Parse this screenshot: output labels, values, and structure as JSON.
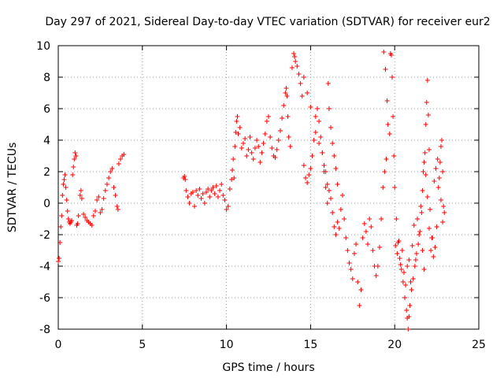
{
  "chart_data": {
    "type": "scatter",
    "title": "Day 297 of 2021, Sidereal Day-to-day VTEC variation (SDTVAR) for receiver eur2",
    "xlabel": "GPS time / hours",
    "ylabel": "SDTVAR / TECUs",
    "xlim": [
      0,
      25
    ],
    "ylim": [
      -8,
      10
    ],
    "xticks": [
      0,
      5,
      10,
      15,
      20,
      25
    ],
    "yticks": [
      -8,
      -6,
      -4,
      -2,
      0,
      2,
      4,
      6,
      8,
      10
    ],
    "xtick_labels": [
      "0",
      "5",
      "10",
      "15",
      "20",
      "25"
    ],
    "ytick_labels": [
      "-8",
      "-6",
      "-4",
      "-2",
      "0",
      "2",
      "4",
      "6",
      "8",
      "10"
    ],
    "grid": true,
    "marker": "+",
    "color": "#ff0000",
    "series": [
      {
        "name": "eur2 SDTVAR",
        "points": [
          [
            0.0,
            -3.7
          ],
          [
            0.05,
            -3.5
          ],
          [
            0.1,
            -2.5
          ],
          [
            0.15,
            -1.5
          ],
          [
            0.2,
            -0.8
          ],
          [
            0.25,
            0.5
          ],
          [
            0.3,
            1.2
          ],
          [
            0.35,
            1.5
          ],
          [
            0.4,
            1.8
          ],
          [
            0.45,
            1.0
          ],
          [
            0.5,
            0.2
          ],
          [
            0.55,
            -0.5
          ],
          [
            0.6,
            -1.0
          ],
          [
            0.65,
            -1.2
          ],
          [
            0.7,
            -1.3
          ],
          [
            0.75,
            -1.2
          ],
          [
            0.8,
            -1.1
          ],
          [
            0.85,
            1.8
          ],
          [
            0.9,
            2.3
          ],
          [
            0.95,
            2.8
          ],
          [
            1.0,
            3.2
          ],
          [
            1.05,
            3.0
          ],
          [
            1.1,
            -1.4
          ],
          [
            1.15,
            -1.3
          ],
          [
            1.2,
            -0.8
          ],
          [
            1.3,
            0.5
          ],
          [
            1.35,
            0.8
          ],
          [
            1.4,
            0.3
          ],
          [
            1.5,
            -0.7
          ],
          [
            1.6,
            -0.9
          ],
          [
            1.7,
            -1.1
          ],
          [
            1.8,
            -1.2
          ],
          [
            1.9,
            -1.3
          ],
          [
            2.0,
            -1.4
          ],
          [
            2.1,
            -0.8
          ],
          [
            2.2,
            -0.5
          ],
          [
            2.3,
            0.2
          ],
          [
            2.4,
            0.4
          ],
          [
            2.5,
            -0.6
          ],
          [
            2.6,
            -0.4
          ],
          [
            2.7,
            0.3
          ],
          [
            2.8,
            0.8
          ],
          [
            2.9,
            1.2
          ],
          [
            3.0,
            1.6
          ],
          [
            3.1,
            2.0
          ],
          [
            3.2,
            2.2
          ],
          [
            3.3,
            1.0
          ],
          [
            3.4,
            0.5
          ],
          [
            3.5,
            -0.2
          ],
          [
            3.55,
            -0.4
          ],
          [
            3.6,
            2.5
          ],
          [
            3.7,
            2.8
          ],
          [
            3.8,
            3.0
          ],
          [
            3.9,
            3.1
          ],
          [
            7.45,
            1.6
          ],
          [
            7.5,
            1.7
          ],
          [
            7.55,
            1.5
          ],
          [
            7.6,
            0.8
          ],
          [
            7.7,
            0.4
          ],
          [
            7.8,
            0.0
          ],
          [
            7.9,
            0.6
          ],
          [
            8.0,
            0.7
          ],
          [
            8.1,
            -0.2
          ],
          [
            8.2,
            0.8
          ],
          [
            8.3,
            0.5
          ],
          [
            8.4,
            0.9
          ],
          [
            8.5,
            0.3
          ],
          [
            8.6,
            0.6
          ],
          [
            8.7,
            0.0
          ],
          [
            8.8,
            0.7
          ],
          [
            8.9,
            0.9
          ],
          [
            9.0,
            0.4
          ],
          [
            9.1,
            0.8
          ],
          [
            9.2,
            1.0
          ],
          [
            9.3,
            0.6
          ],
          [
            9.4,
            1.1
          ],
          [
            9.5,
            0.4
          ],
          [
            9.6,
            0.8
          ],
          [
            9.7,
            1.2
          ],
          [
            9.8,
            0.5
          ],
          [
            9.9,
            0.2
          ],
          [
            10.0,
            -0.4
          ],
          [
            10.1,
            -0.2
          ],
          [
            10.2,
            0.9
          ],
          [
            10.3,
            1.5
          ],
          [
            10.35,
            2.1
          ],
          [
            10.4,
            2.8
          ],
          [
            10.45,
            1.6
          ],
          [
            10.5,
            3.6
          ],
          [
            10.55,
            4.5
          ],
          [
            10.6,
            5.2
          ],
          [
            10.65,
            5.5
          ],
          [
            10.7,
            4.4
          ],
          [
            10.8,
            4.8
          ],
          [
            10.9,
            3.5
          ],
          [
            11.0,
            3.8
          ],
          [
            11.1,
            4.1
          ],
          [
            11.2,
            3.0
          ],
          [
            11.3,
            3.4
          ],
          [
            11.4,
            4.2
          ],
          [
            11.5,
            3.2
          ],
          [
            11.6,
            2.8
          ],
          [
            11.7,
            3.5
          ],
          [
            11.8,
            4.0
          ],
          [
            11.9,
            3.6
          ],
          [
            12.0,
            2.6
          ],
          [
            12.1,
            3.2
          ],
          [
            12.2,
            3.8
          ],
          [
            12.3,
            4.4
          ],
          [
            12.4,
            5.2
          ],
          [
            12.5,
            5.5
          ],
          [
            12.6,
            4.2
          ],
          [
            12.7,
            3.5
          ],
          [
            12.8,
            3.0
          ],
          [
            12.9,
            2.9
          ],
          [
            13.0,
            3.4
          ],
          [
            13.1,
            4.0
          ],
          [
            13.2,
            4.6
          ],
          [
            13.3,
            5.4
          ],
          [
            13.4,
            6.2
          ],
          [
            13.5,
            7.0
          ],
          [
            13.55,
            7.3
          ],
          [
            13.6,
            6.8
          ],
          [
            13.65,
            5.5
          ],
          [
            13.7,
            4.2
          ],
          [
            13.8,
            3.6
          ],
          [
            13.9,
            8.6
          ],
          [
            14.0,
            9.5
          ],
          [
            14.05,
            9.3
          ],
          [
            14.1,
            9.0
          ],
          [
            14.2,
            8.7
          ],
          [
            14.3,
            8.2
          ],
          [
            14.4,
            7.6
          ],
          [
            14.5,
            6.8
          ],
          [
            14.6,
            2.4
          ],
          [
            14.7,
            1.6
          ],
          [
            14.8,
            1.3
          ],
          [
            14.9,
            1.8
          ],
          [
            15.0,
            2.2
          ],
          [
            15.1,
            3.0
          ],
          [
            15.2,
            4.0
          ],
          [
            15.3,
            5.5
          ],
          [
            15.4,
            6.0
          ],
          [
            15.5,
            5.2
          ],
          [
            15.6,
            4.2
          ],
          [
            15.7,
            3.2
          ],
          [
            15.8,
            2.0
          ],
          [
            15.9,
            1.0
          ],
          [
            16.0,
            0.0
          ],
          [
            16.05,
            7.6
          ],
          [
            16.1,
            6.0
          ],
          [
            16.2,
            4.8
          ],
          [
            16.3,
            3.8
          ],
          [
            16.4,
            3.0
          ],
          [
            16.5,
            2.2
          ],
          [
            16.6,
            1.2
          ],
          [
            16.7,
            -1.6
          ],
          [
            14.6,
            8.0
          ],
          [
            14.8,
            7.0
          ],
          [
            15.0,
            6.1
          ],
          [
            15.3,
            4.5
          ],
          [
            15.5,
            3.8
          ],
          [
            15.7,
            3.2
          ],
          [
            15.8,
            2.4
          ],
          [
            15.9,
            2.0
          ],
          [
            16.0,
            1.2
          ],
          [
            16.1,
            0.8
          ],
          [
            16.2,
            0.3
          ],
          [
            16.3,
            -0.6
          ],
          [
            16.4,
            -1.5
          ],
          [
            16.5,
            -2.0
          ],
          [
            16.6,
            -1.2
          ],
          [
            16.8,
            -0.4
          ],
          [
            16.9,
            0.5
          ],
          [
            17.0,
            -1.0
          ],
          [
            17.1,
            -2.2
          ],
          [
            17.2,
            -3.0
          ],
          [
            17.3,
            -3.8
          ],
          [
            17.4,
            -4.2
          ],
          [
            17.5,
            -4.8
          ],
          [
            17.6,
            -3.2
          ],
          [
            17.7,
            -2.6
          ],
          [
            17.8,
            -5.0
          ],
          [
            17.9,
            -6.5
          ],
          [
            18.0,
            -5.5
          ],
          [
            18.1,
            -2.2
          ],
          [
            18.2,
            -1.3
          ],
          [
            18.3,
            -1.8
          ],
          [
            18.4,
            -2.6
          ],
          [
            18.5,
            -1.0
          ],
          [
            18.6,
            -1.5
          ],
          [
            18.7,
            -3.0
          ],
          [
            18.8,
            -4.0
          ],
          [
            18.9,
            -4.6
          ],
          [
            19.0,
            -4.0
          ],
          [
            19.1,
            -2.8
          ],
          [
            19.2,
            -1.0
          ],
          [
            19.3,
            1.0
          ],
          [
            19.4,
            2.0
          ],
          [
            19.5,
            2.8
          ],
          [
            19.35,
            9.6
          ],
          [
            19.45,
            8.5
          ],
          [
            19.55,
            6.5
          ],
          [
            19.6,
            5.0
          ],
          [
            19.7,
            4.4
          ],
          [
            19.75,
            9.5
          ],
          [
            19.8,
            9.4
          ],
          [
            19.85,
            8.0
          ],
          [
            19.9,
            5.5
          ],
          [
            19.95,
            3.0
          ],
          [
            20.0,
            1.0
          ],
          [
            20.1,
            -1.0
          ],
          [
            20.2,
            -2.5
          ],
          [
            20.3,
            -3.5
          ],
          [
            20.4,
            -4.2
          ],
          [
            20.5,
            -5.0
          ],
          [
            20.6,
            -6.0
          ],
          [
            20.7,
            -6.8
          ],
          [
            20.75,
            -7.3
          ],
          [
            20.8,
            -8.0
          ],
          [
            20.85,
            -7.2
          ],
          [
            20.9,
            -6.5
          ],
          [
            21.0,
            -5.5
          ],
          [
            21.1,
            -4.8
          ],
          [
            21.2,
            -4.0
          ],
          [
            21.3,
            -3.2
          ],
          [
            21.4,
            -2.6
          ],
          [
            21.5,
            -1.8
          ],
          [
            21.6,
            -0.6
          ],
          [
            21.65,
            0.8
          ],
          [
            21.7,
            2.0
          ],
          [
            21.75,
            2.6
          ],
          [
            21.8,
            3.2
          ],
          [
            21.85,
            5.0
          ],
          [
            21.9,
            6.4
          ],
          [
            21.95,
            7.8
          ],
          [
            22.0,
            5.6
          ],
          [
            22.05,
            3.4
          ],
          [
            22.1,
            -0.4
          ],
          [
            22.2,
            -2.2
          ],
          [
            22.3,
            -3.4
          ],
          [
            22.4,
            -2.8
          ],
          [
            22.5,
            -1.5
          ],
          [
            22.6,
            1.0
          ],
          [
            22.7,
            2.6
          ],
          [
            22.75,
            3.6
          ],
          [
            22.8,
            4.0
          ],
          [
            22.85,
            2.0
          ],
          [
            22.9,
            -0.2
          ],
          [
            22.95,
            -0.6
          ],
          [
            20.05,
            -2.7
          ],
          [
            20.15,
            -3.2
          ],
          [
            20.25,
            -2.4
          ],
          [
            20.35,
            -3.9
          ],
          [
            20.45,
            -3.0
          ],
          [
            20.55,
            -4.4
          ],
          [
            20.65,
            -5.2
          ],
          [
            20.75,
            -4.0
          ],
          [
            20.85,
            -3.6
          ],
          [
            20.95,
            -5.0
          ],
          [
            21.05,
            -2.7
          ],
          [
            21.15,
            -1.4
          ],
          [
            21.25,
            -3.6
          ],
          [
            21.35,
            -1.0
          ],
          [
            21.45,
            -2.0
          ],
          [
            21.55,
            -0.2
          ],
          [
            21.65,
            -3.0
          ],
          [
            21.75,
            -4.2
          ],
          [
            21.85,
            1.8
          ],
          [
            21.95,
            0.4
          ],
          [
            22.05,
            -1.6
          ],
          [
            22.15,
            -3.0
          ],
          [
            22.25,
            -2.2
          ],
          [
            22.35,
            1.4
          ],
          [
            22.45,
            2.2
          ],
          [
            22.55,
            2.8
          ],
          [
            22.65,
            1.6
          ],
          [
            22.75,
            0.2
          ],
          [
            22.85,
            -1.2
          ]
        ]
      }
    ]
  }
}
